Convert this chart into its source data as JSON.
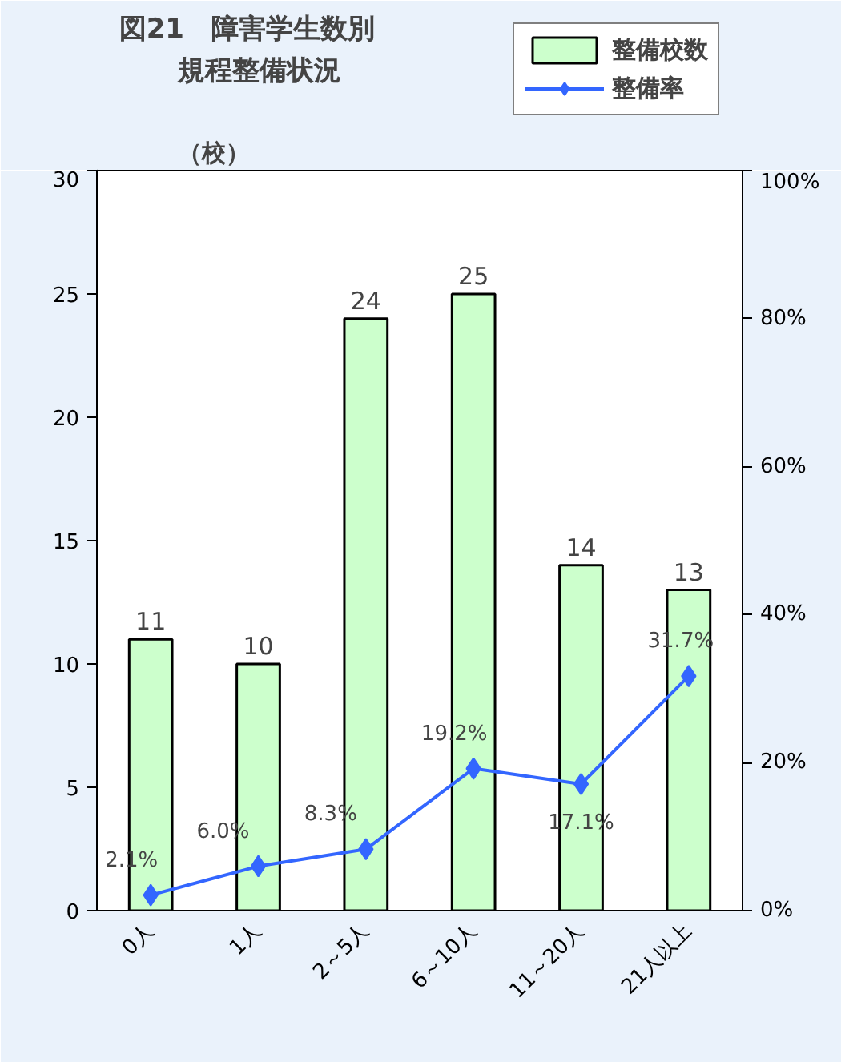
{
  "chart_data": {
    "type": "bar",
    "title": "図21　障害学生数別",
    "subtitle": "規程整備状況",
    "ylabel": "（校）",
    "categories": [
      "0人",
      "1人",
      "2～5人",
      "6～10人",
      "11～20人",
      "21人以上"
    ],
    "series": [
      {
        "name": "整備校数",
        "color": "#ccffcc",
        "values": [
          11,
          10,
          24,
          25,
          14,
          13
        ],
        "value_labels": [
          "11",
          "10",
          "24",
          "25",
          "14",
          "13"
        ]
      },
      {
        "name": "整備率",
        "type": "line",
        "axis": "y2",
        "color": "#3366ff",
        "marker": "diamond",
        "values": [
          2.1,
          6.0,
          8.3,
          19.2,
          17.1,
          31.7
        ],
        "value_labels": [
          "2.1%",
          "6.0%",
          "8.3%",
          "19.2%",
          "17.1%",
          "31.7%"
        ]
      }
    ],
    "ylim": [
      0,
      30
    ],
    "yticks": [
      0,
      5,
      10,
      15,
      20,
      25,
      30
    ],
    "y2lim": [
      0,
      100
    ],
    "y2ticks": [
      {
        "value": 0,
        "label": "0%"
      },
      {
        "value": 20,
        "label": "20%"
      },
      {
        "value": 40,
        "label": "40%"
      },
      {
        "value": 60,
        "label": "60%"
      },
      {
        "value": 80,
        "label": "80%"
      },
      {
        "value": 100,
        "label": "100%"
      }
    ],
    "grid": false,
    "legend": "top right"
  }
}
